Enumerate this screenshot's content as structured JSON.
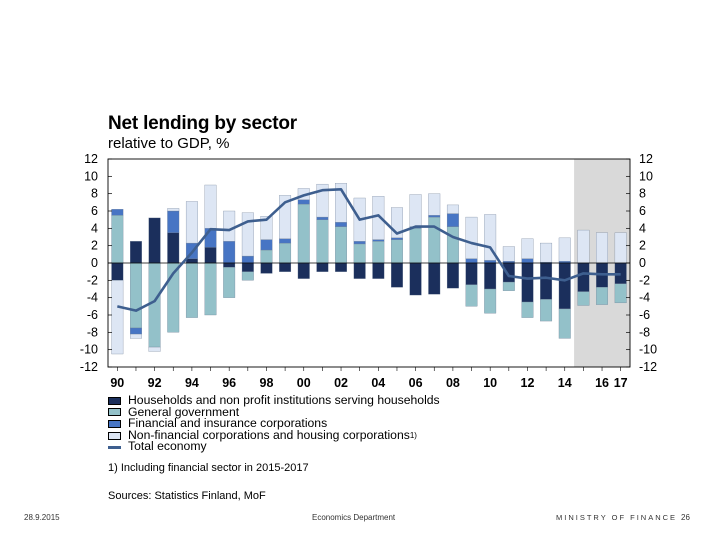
{
  "chart_data": {
    "type": "bar",
    "title": "Net lending by sector",
    "subtitle": "relative to GDP, %",
    "stacked": true,
    "ylim": [
      -12,
      12
    ],
    "yticks": [
      12,
      10,
      8,
      6,
      4,
      2,
      0,
      -2,
      -4,
      -6,
      -8,
      -10,
      -12
    ],
    "years": [
      1990,
      1991,
      1992,
      1993,
      1994,
      1995,
      1996,
      1997,
      1998,
      1999,
      2000,
      2001,
      2002,
      2003,
      2004,
      2005,
      2006,
      2007,
      2008,
      2009,
      2010,
      2011,
      2012,
      2013,
      2014,
      2015,
      2016,
      2017
    ],
    "xtick_labels": [
      "90",
      "92",
      "94",
      "96",
      "98",
      "00",
      "02",
      "04",
      "06",
      "08",
      "10",
      "12",
      "14",
      "16",
      "17"
    ],
    "xtick_years": [
      1990,
      1992,
      1994,
      1996,
      1998,
      2000,
      2002,
      2004,
      2006,
      2008,
      2010,
      2012,
      2014,
      2016,
      2017
    ],
    "forecast_from": 2015,
    "series": [
      {
        "name": "Households and non profit institutions serving households",
        "color": "#1b2f5c",
        "values": [
          -2.0,
          2.5,
          5.2,
          3.5,
          0.5,
          1.8,
          -0.5,
          -1.0,
          -1.2,
          -1.0,
          -1.8,
          -1.0,
          -1.0,
          -1.8,
          -1.8,
          -2.8,
          -3.7,
          -3.6,
          -2.9,
          -2.5,
          -3.0,
          -2.2,
          -4.5,
          -4.2,
          -5.3,
          -3.3,
          -2.8,
          -2.4
        ]
      },
      {
        "name": "General government",
        "color": "#93c1c9",
        "values": [
          5.5,
          -7.5,
          -9.7,
          -8.0,
          -6.3,
          -6.0,
          -3.5,
          -1.0,
          1.5,
          2.3,
          6.8,
          5.0,
          4.2,
          2.2,
          2.5,
          2.7,
          4.0,
          5.3,
          4.2,
          -2.5,
          -2.8,
          -1.0,
          -1.8,
          -2.5,
          -3.4,
          -1.6,
          -2.0,
          -2.2
        ]
      },
      {
        "name": "Financial and insurance corporations",
        "color": "#4775c4",
        "values": [
          0.7,
          -0.7,
          0.0,
          2.5,
          1.8,
          2.2,
          2.5,
          0.8,
          1.2,
          0.5,
          0.5,
          0.3,
          0.5,
          0.3,
          0.2,
          0.2,
          0.2,
          0.2,
          1.5,
          0.5,
          0.3,
          0.2,
          0.5,
          0.1,
          0.2,
          0.0,
          0.0,
          0.0
        ]
      },
      {
        "name": "Non-financial corporations and housing corporations",
        "color": "#dde6f4",
        "values": [
          -8.5,
          -0.5,
          -0.5,
          0.3,
          4.8,
          5.0,
          3.5,
          5.0,
          2.7,
          5.0,
          1.3,
          3.8,
          4.5,
          5.0,
          5.0,
          3.5,
          3.7,
          2.5,
          1.0,
          4.8,
          5.3,
          1.7,
          2.3,
          2.2,
          2.7,
          3.8,
          3.5,
          3.5
        ]
      },
      {
        "name": "Total economy",
        "type": "line",
        "color": "#3e5f8f",
        "values": [
          -5.0,
          -5.5,
          -4.4,
          -1.2,
          1.2,
          3.9,
          3.8,
          4.8,
          5.0,
          7.0,
          7.8,
          8.4,
          8.5,
          5.0,
          5.5,
          3.4,
          4.2,
          4.2,
          3.0,
          2.3,
          1.8,
          -1.5,
          -1.8,
          -1.7,
          -2.0,
          -1.2,
          -1.3,
          -1.3
        ]
      }
    ]
  },
  "legend": {
    "items": [
      {
        "label": "Households and non profit institutions serving households",
        "color": "#1b2f5c",
        "kind": "box"
      },
      {
        "label": "General government",
        "color": "#93c1c9",
        "kind": "box"
      },
      {
        "label": "Financial and insurance corporations",
        "color": "#4775c4",
        "kind": "box"
      },
      {
        "label": "Non-financial corporations and housing corporations",
        "sup": "1)",
        "color": "#dde6f4",
        "kind": "box"
      },
      {
        "label": "Total economy",
        "color": "#3e5f8f",
        "kind": "line"
      }
    ]
  },
  "footnote": "1) Including financial sector in 2015-2017",
  "sources": "Sources: Statistics Finland, MoF",
  "footer": {
    "date": "28.9.2015",
    "department": "Economics Department",
    "ministry": "MINISTRY OF FINANCE",
    "page": "26"
  }
}
